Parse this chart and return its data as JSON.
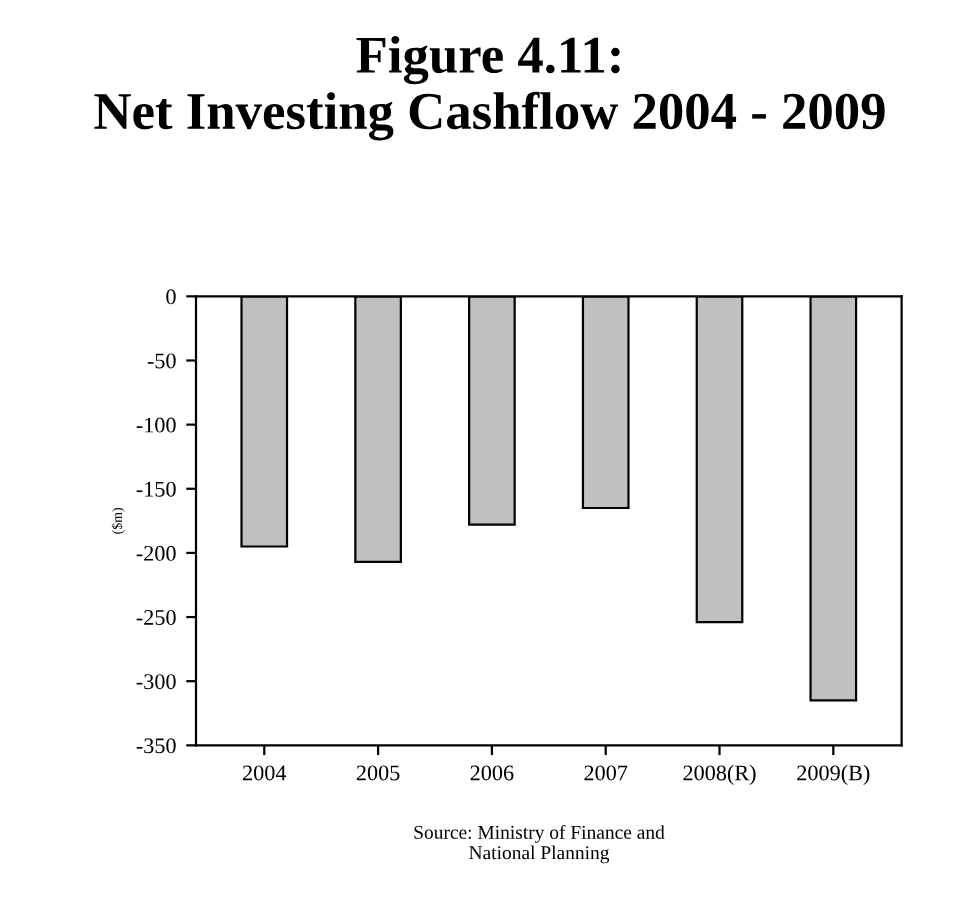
{
  "chart_data": {
    "type": "bar",
    "title": "Figure 4.11:\nNet Investing Cashflow 2004 - 2009",
    "ylabel": "($m)",
    "categories": [
      "2004",
      "2005",
      "2006",
      "2007",
      "2008(R)",
      "2009(B)"
    ],
    "values": [
      -195,
      -207,
      -178,
      -165,
      -254,
      -315
    ],
    "color": "#c0c0c0",
    "ylim": [
      -350,
      0
    ],
    "yticks": [
      -350,
      -300,
      -250,
      -200,
      -150,
      -100,
      -50,
      0
    ],
    "grid": false,
    "annotations": [
      "Source: Ministry of Finance and\nNational Planning"
    ]
  }
}
